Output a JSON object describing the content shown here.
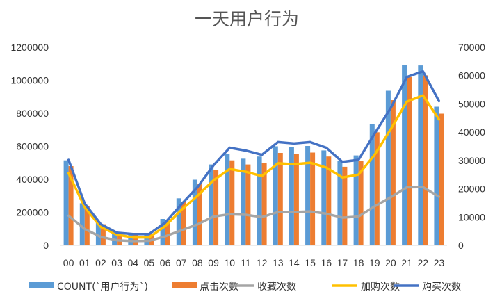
{
  "chart_data": {
    "type": "bar+line",
    "title": "一天用户行为",
    "categories": [
      "00",
      "01",
      "02",
      "03",
      "04",
      "05",
      "06",
      "07",
      "08",
      "09",
      "10",
      "11",
      "12",
      "13",
      "14",
      "15",
      "16",
      "17",
      "18",
      "19",
      "20",
      "21",
      "22",
      "23"
    ],
    "left_axis": {
      "ylim": [
        0,
        1200000
      ],
      "ticks": [
        "0",
        "200000",
        "400000",
        "600000",
        "800000",
        "1000000",
        "1200000"
      ]
    },
    "right_axis": {
      "ylim": [
        0,
        70000
      ],
      "ticks": [
        "0",
        "10000",
        "20000",
        "30000",
        "40000",
        "50000",
        "60000",
        "70000"
      ]
    },
    "bar_series": [
      {
        "name": "COUNT(`用户行为`)",
        "color": "#5B9BD5",
        "axis": "left",
        "values": [
          515000,
          255000,
          138000,
          88000,
          72000,
          75000,
          160000,
          285000,
          398000,
          490000,
          553000,
          525000,
          538000,
          600000,
          595000,
          602000,
          575000,
          510000,
          545000,
          735000,
          937000,
          1092000,
          1090000,
          840000
        ]
      },
      {
        "name": "点击次数",
        "color": "#ED7D31",
        "axis": "left",
        "values": [
          480000,
          238000,
          128000,
          80000,
          66000,
          70000,
          150000,
          265000,
          370000,
          455000,
          515000,
          490000,
          500000,
          560000,
          555000,
          562000,
          538000,
          476000,
          512000,
          685000,
          880000,
          1020000,
          1030000,
          798000
        ]
      }
    ],
    "line_series": [
      {
        "name": "收藏次数",
        "color": "#A5A5A5",
        "axis": "right",
        "values": [
          10500,
          5800,
          3000,
          1800,
          1500,
          1600,
          3200,
          5300,
          7400,
          10200,
          11000,
          10800,
          10000,
          11800,
          11800,
          12000,
          11200,
          9800,
          10200,
          13800,
          17000,
          20500,
          20600,
          17200
        ]
      },
      {
        "name": "加购次数",
        "color": "#FFC000",
        "axis": "right",
        "values": [
          25500,
          13500,
          6500,
          3800,
          2800,
          2800,
          6800,
          12500,
          17500,
          23000,
          27000,
          26000,
          24500,
          29000,
          28700,
          29200,
          27500,
          24000,
          25000,
          32000,
          41000,
          50800,
          53000,
          44500
        ]
      },
      {
        "name": "购买次数",
        "color": "#4472C4",
        "axis": "right",
        "values": [
          30200,
          14800,
          7500,
          4500,
          4000,
          4000,
          8000,
          14500,
          20500,
          28300,
          34500,
          33500,
          32000,
          36500,
          36000,
          36500,
          34500,
          29500,
          30200,
          39500,
          48500,
          59500,
          61500,
          51000
        ]
      }
    ],
    "legend": [
      "COUNT(`用户行为`)",
      "点击次数",
      "收藏次数",
      "加购次数",
      "购买次数"
    ],
    "legend_position": "bottom",
    "grid": false
  }
}
